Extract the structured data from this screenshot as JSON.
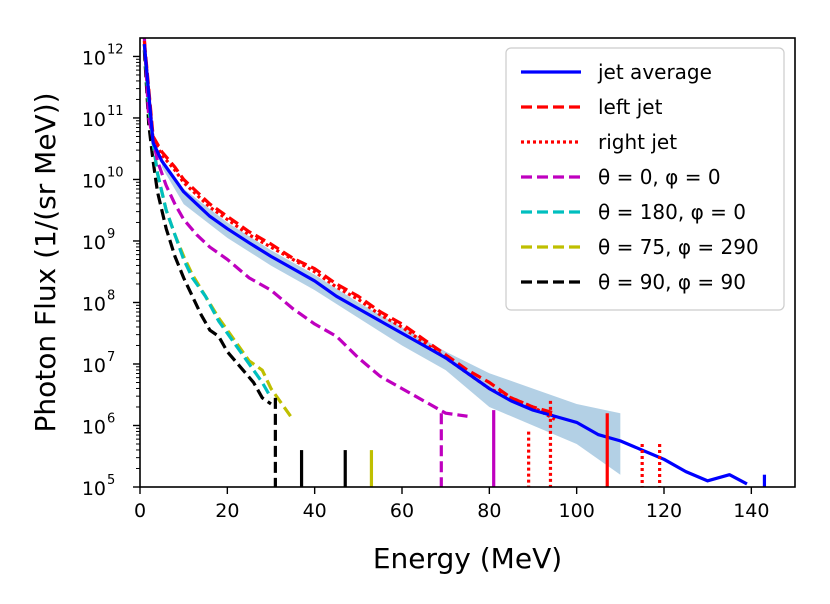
{
  "chart_data": {
    "type": "line",
    "title": "",
    "xlabel": "Energy (MeV)",
    "ylabel": "Photon Flux (1/(sr MeV))",
    "xlim": [
      0,
      150
    ],
    "ylim_log10": [
      5,
      12.3
    ],
    "yscale": "log",
    "x_ticks": [
      0,
      20,
      40,
      60,
      80,
      100,
      120,
      140
    ],
    "x_tick_labels": [
      "0",
      "20",
      "40",
      "60",
      "80",
      "100",
      "120",
      "140"
    ],
    "y_ticks_log10": [
      5,
      6,
      7,
      8,
      9,
      10,
      11,
      12
    ],
    "y_tick_bases": [
      "10",
      "10",
      "10",
      "10",
      "10",
      "10",
      "10",
      "10"
    ],
    "y_tick_exponents": [
      "5",
      "6",
      "7",
      "8",
      "9",
      "10",
      "11",
      "12"
    ],
    "legend_position": "upper-right",
    "colors": {
      "jet_average": "#0000ff",
      "band": "#a6c8e0",
      "left_jet": "#ff0000",
      "right_jet": "#ff0000",
      "theta0_phi0": "#bf00bf",
      "theta180_phi0": "#00bfbf",
      "theta75_phi290": "#bfbf00",
      "theta90_phi90": "#000000"
    },
    "series": [
      {
        "name": "jet average",
        "key": "jet_average",
        "style": "solid",
        "x": [
          1,
          3,
          5,
          8,
          10,
          13,
          16,
          20,
          25,
          30,
          35,
          40,
          45,
          50,
          55,
          60,
          65,
          70,
          75,
          80,
          85,
          90,
          95,
          100,
          105,
          110,
          115,
          120,
          125,
          130,
          135,
          139
        ],
        "log10_y": [
          12.2,
          10.6,
          10.3,
          10.0,
          9.8,
          9.6,
          9.4,
          9.2,
          8.97,
          8.75,
          8.55,
          8.35,
          8.1,
          7.9,
          7.7,
          7.5,
          7.3,
          7.1,
          6.85,
          6.6,
          6.4,
          6.25,
          6.15,
          6.05,
          5.85,
          5.75,
          5.6,
          5.45,
          5.25,
          5.1,
          5.2,
          5.05
        ]
      },
      {
        "name": "left jet",
        "key": "left_jet",
        "style": "dashed",
        "x": [
          1,
          3,
          5,
          8,
          10,
          13,
          16,
          20,
          25,
          30,
          35,
          40,
          45,
          50,
          55,
          60,
          65,
          70,
          75,
          80,
          85,
          90,
          95
        ],
        "log10_y": [
          12.25,
          10.7,
          10.45,
          10.2,
          10.0,
          9.8,
          9.6,
          9.4,
          9.15,
          8.95,
          8.72,
          8.55,
          8.3,
          8.1,
          7.85,
          7.65,
          7.4,
          7.15,
          6.9,
          6.7,
          6.45,
          6.3,
          6.2
        ]
      },
      {
        "name": "right jet",
        "key": "right_jet",
        "style": "dotted",
        "x": [
          1,
          3,
          5,
          8,
          10,
          13,
          16,
          20,
          25,
          30,
          35,
          40,
          45,
          50,
          55,
          60,
          65,
          70,
          75,
          80,
          85,
          90,
          95
        ],
        "log10_y": [
          12.2,
          10.65,
          10.4,
          10.15,
          9.95,
          9.75,
          9.55,
          9.35,
          9.1,
          8.9,
          8.7,
          8.5,
          8.25,
          8.05,
          7.8,
          7.6,
          7.35,
          7.1,
          6.85,
          6.6,
          6.45,
          6.3,
          6.1
        ]
      },
      {
        "name": "θ = 0, φ = 0",
        "key": "theta0_phi0",
        "style": "dashed",
        "x": [
          1,
          2,
          4,
          6,
          8,
          10,
          13,
          16,
          20,
          25,
          30,
          35,
          40,
          45,
          50,
          55,
          60,
          65,
          70,
          75
        ],
        "log10_y": [
          12.35,
          11.0,
          10.3,
          9.9,
          9.6,
          9.35,
          9.1,
          8.9,
          8.7,
          8.4,
          8.2,
          7.9,
          7.65,
          7.45,
          7.1,
          6.8,
          6.6,
          6.4,
          6.2,
          6.15
        ]
      },
      {
        "name": "θ = 180, φ = 0",
        "key": "theta180_phi0",
        "style": "dashed",
        "x": [
          1,
          2,
          3,
          4,
          6,
          8,
          10,
          12,
          15,
          18,
          20,
          22,
          25,
          28,
          30
        ],
        "log10_y": [
          12.2,
          11.2,
          10.6,
          10.1,
          9.5,
          9.1,
          8.7,
          8.4,
          8.1,
          7.7,
          7.5,
          7.3,
          7.0,
          6.7,
          6.45
        ]
      },
      {
        "name": "θ = 75, φ = 290",
        "key": "theta75_phi290",
        "style": "dashed",
        "x": [
          1,
          2,
          3,
          4,
          6,
          8,
          10,
          12,
          15,
          18,
          20,
          22,
          25,
          28,
          30,
          35
        ],
        "log10_y": [
          12.2,
          11.15,
          10.6,
          10.1,
          9.5,
          9.1,
          8.75,
          8.45,
          8.1,
          7.75,
          7.55,
          7.35,
          7.05,
          6.9,
          6.6,
          6.1
        ]
      },
      {
        "name": "θ = 90, φ = 90",
        "key": "theta90_phi90",
        "style": "dashed",
        "x": [
          1,
          2,
          3,
          4,
          6,
          8,
          10,
          12,
          14,
          16,
          18,
          20,
          23,
          26,
          28,
          30
        ],
        "log10_y": [
          12.1,
          10.9,
          10.3,
          9.8,
          9.2,
          8.75,
          8.4,
          8.1,
          7.8,
          7.55,
          7.45,
          7.2,
          6.95,
          6.7,
          6.45,
          6.35
        ]
      }
    ],
    "band": {
      "name": "jet average spread",
      "x": [
        5,
        10,
        20,
        30,
        40,
        50,
        60,
        70,
        80,
        90,
        100,
        110
      ],
      "log10_upper": [
        10.35,
        9.85,
        9.3,
        8.85,
        8.45,
        8.0,
        7.6,
        7.2,
        6.85,
        6.6,
        6.35,
        6.2
      ],
      "log10_lower": [
        10.2,
        9.6,
        9.05,
        8.6,
        8.2,
        7.75,
        7.3,
        6.9,
        6.3,
        6.0,
        5.7,
        5.2
      ]
    },
    "spikes": [
      {
        "key": "theta90_phi90",
        "x": 31,
        "top": 6.45,
        "style": "dashed"
      },
      {
        "key": "theta90_phi90",
        "x": 37,
        "top": 5.6,
        "style": "solid"
      },
      {
        "key": "theta90_phi90",
        "x": 47,
        "top": 5.6,
        "style": "solid"
      },
      {
        "key": "theta75_phi290",
        "x": 53,
        "top": 5.6,
        "style": "solid"
      },
      {
        "key": "theta0_phi0",
        "x": 69,
        "top": 6.2,
        "style": "dashed"
      },
      {
        "key": "theta0_phi0",
        "x": 81,
        "top": 6.25,
        "style": "solid"
      },
      {
        "key": "right_jet",
        "x": 89,
        "top": 5.9,
        "style": "dotted"
      },
      {
        "key": "right_jet",
        "x": 94,
        "top": 6.4,
        "style": "dotted"
      },
      {
        "key": "left_jet",
        "x": 107,
        "top": 6.2,
        "style": "solid"
      },
      {
        "key": "right_jet",
        "x": 115,
        "top": 5.7,
        "style": "dotted"
      },
      {
        "key": "right_jet",
        "x": 119,
        "top": 5.7,
        "style": "dotted"
      },
      {
        "key": "jet_average",
        "x": 143,
        "top": 5.2,
        "style": "solid"
      }
    ],
    "legend": [
      {
        "key": "jet_average",
        "style": "solid",
        "label_plain": "jet average"
      },
      {
        "key": "left_jet",
        "style": "dashed",
        "label_plain": "left jet"
      },
      {
        "key": "right_jet",
        "style": "dotted",
        "label_plain": "right jet"
      },
      {
        "key": "theta0_phi0",
        "style": "dashed",
        "label_plain": "θ = 0, φ = 0"
      },
      {
        "key": "theta180_phi0",
        "style": "dashed",
        "label_plain": "θ = 180, φ = 0"
      },
      {
        "key": "theta75_phi290",
        "style": "dashed",
        "label_plain": "θ = 75, φ = 290"
      },
      {
        "key": "theta90_phi90",
        "style": "dashed",
        "label_plain": "θ = 90, φ = 90"
      }
    ]
  }
}
